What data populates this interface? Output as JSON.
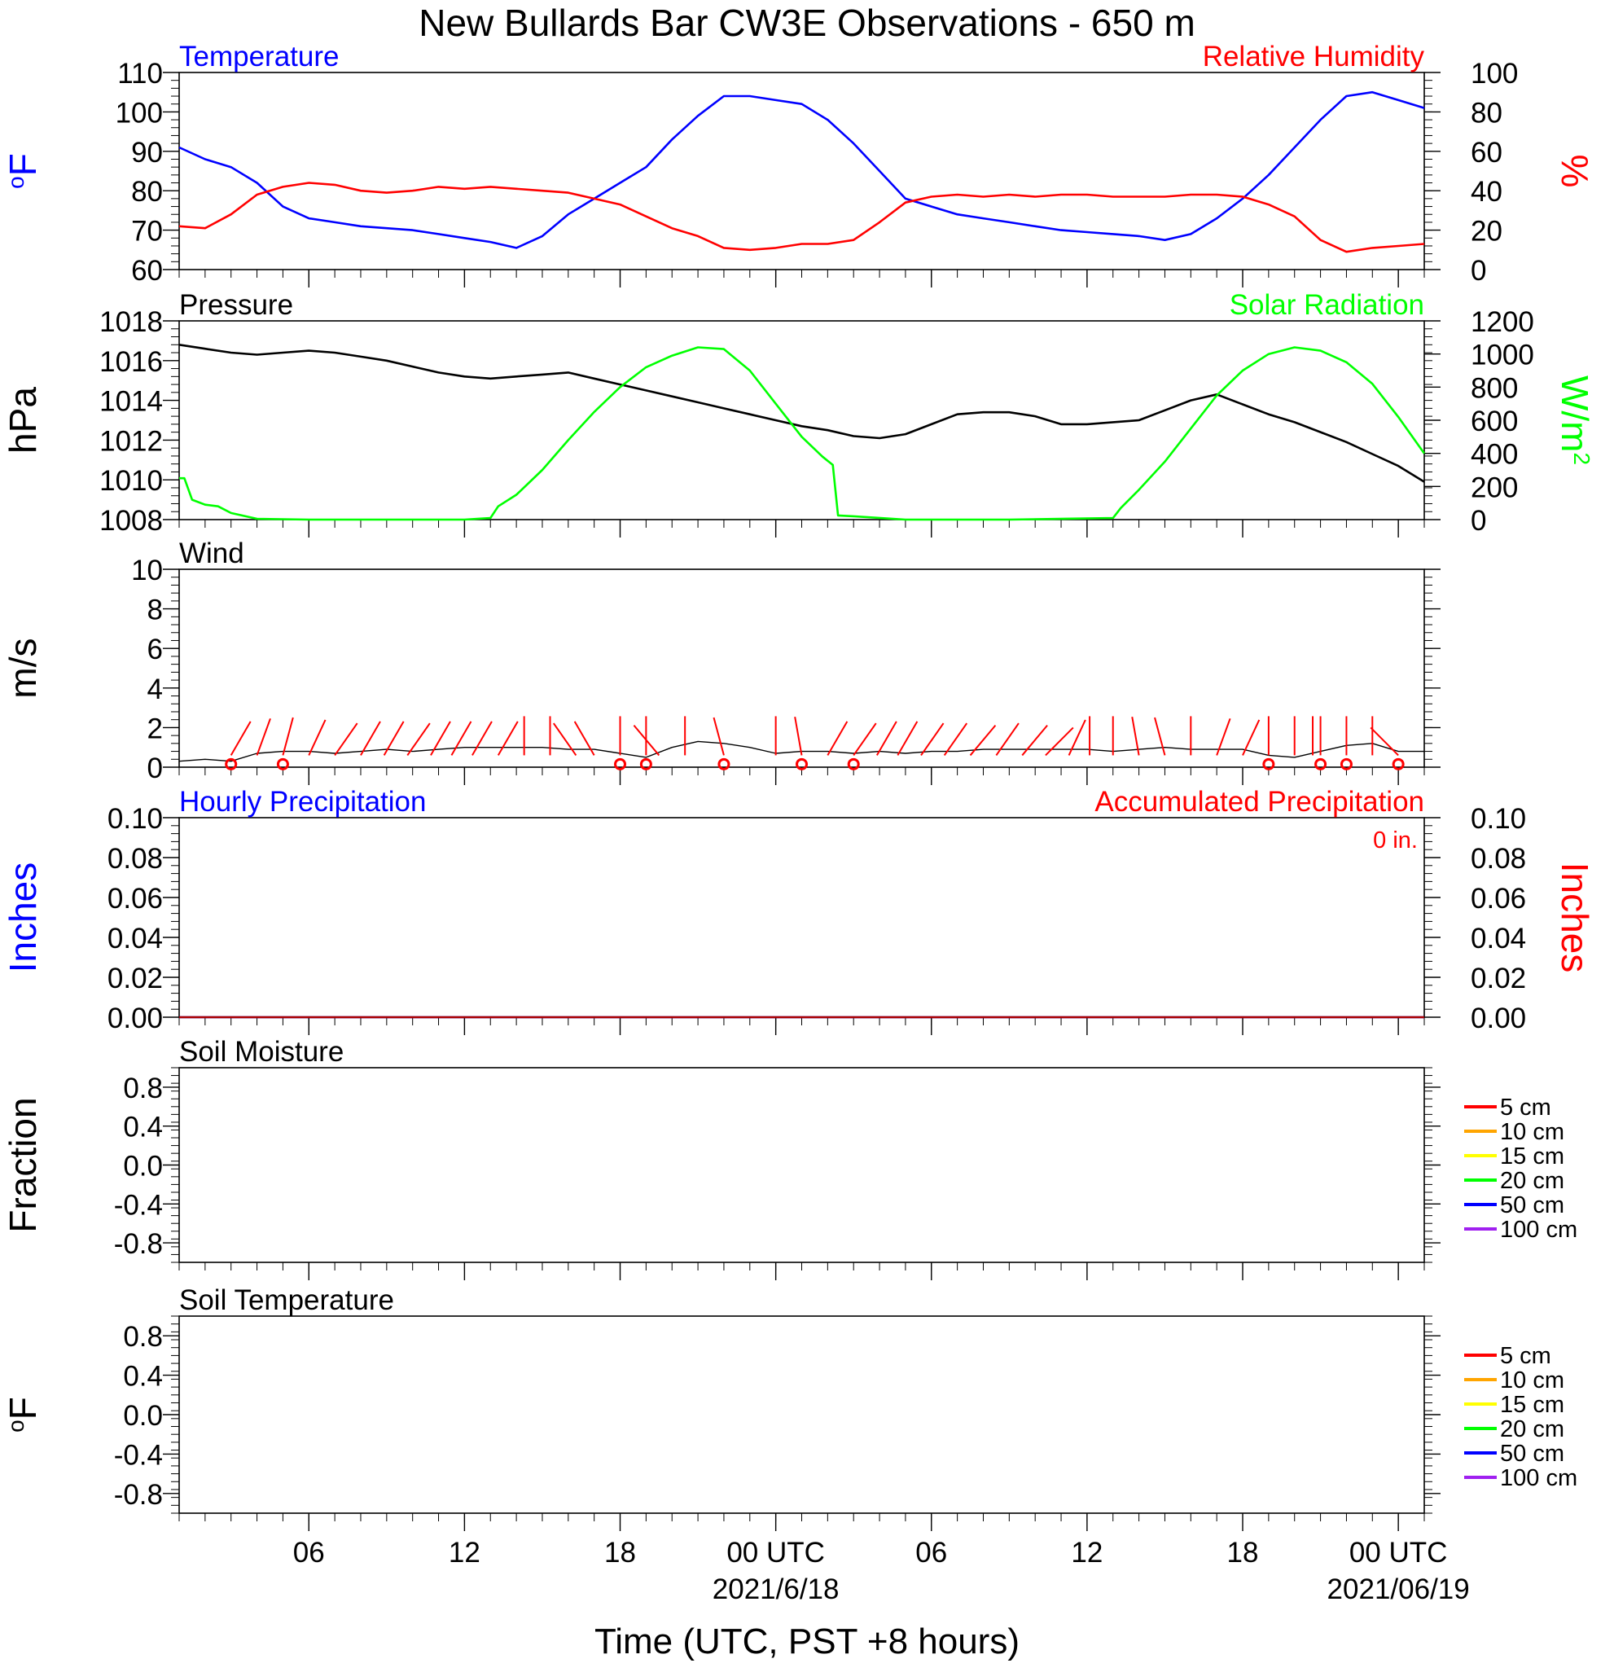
{
  "figure": {
    "title": "New Bullards Bar CW3E Observations - 650 m",
    "xlabel": "Time (UTC, PST +8 hours)"
  },
  "colors": {
    "frame": "#000000",
    "temperature": "#0000ff",
    "humidity": "#ff0000",
    "pressure": "#000000",
    "solar": "#00ff00",
    "wind_speed": "#000000",
    "wind_barb": "#ff0000",
    "hourly_precip": "#0000ff",
    "accum_precip": "#ff0000"
  },
  "chart_data": [
    {
      "id": "temp_rh",
      "type": "line",
      "left_label": "Temperature",
      "right_label": "Relative Humidity",
      "left_unit": "oF",
      "right_unit": "%",
      "x_range_hours": [
        0,
        48
      ],
      "y_left_range": [
        60,
        110
      ],
      "y_right_range": [
        0,
        100
      ],
      "y_left_ticks": [
        "60",
        "70",
        "80",
        "90",
        "100",
        "110"
      ],
      "y_right_ticks": [
        "0",
        "20",
        "40",
        "60",
        "80",
        "100"
      ],
      "series": [
        {
          "name": "Temperature",
          "axis": "left",
          "x": [
            0,
            1,
            2,
            3,
            4,
            5,
            6,
            7,
            8,
            9,
            10,
            11,
            12,
            13,
            14,
            15,
            16,
            17,
            18,
            19,
            20,
            21,
            22,
            23,
            24,
            25,
            26,
            27,
            28,
            29,
            30,
            31,
            32,
            33,
            34,
            35,
            36,
            37,
            38,
            39,
            40,
            41,
            42,
            43,
            44,
            45,
            46,
            47,
            48
          ],
          "y": [
            91,
            88,
            86,
            82,
            76,
            73,
            72,
            71,
            70.5,
            70,
            69,
            68,
            67,
            65.5,
            68.5,
            74,
            78,
            82,
            86,
            93,
            99,
            104,
            104,
            103,
            102,
            98,
            92,
            85,
            78,
            76,
            74,
            73,
            72,
            71,
            70,
            69.5,
            69,
            68.5,
            67.5,
            69,
            73,
            78,
            84,
            91,
            98,
            104,
            105,
            103,
            101
          ]
        },
        {
          "name": "Relative Humidity",
          "axis": "right",
          "x": [
            0,
            1,
            2,
            3,
            4,
            5,
            6,
            7,
            8,
            9,
            10,
            11,
            12,
            13,
            14,
            15,
            16,
            17,
            18,
            19,
            20,
            21,
            22,
            23,
            24,
            25,
            26,
            27,
            28,
            29,
            30,
            31,
            32,
            33,
            34,
            35,
            36,
            37,
            38,
            39,
            40,
            41,
            42,
            43,
            44,
            45,
            46,
            47,
            48
          ],
          "y": [
            22,
            21,
            28,
            38,
            42,
            44,
            43,
            40,
            39,
            40,
            42,
            41,
            42,
            41,
            40,
            39,
            36,
            33,
            27,
            21,
            17,
            11,
            10,
            11,
            13,
            13,
            15,
            24,
            34,
            37,
            38,
            37,
            38,
            37,
            38,
            38,
            37,
            37,
            37,
            38,
            38,
            37,
            33,
            27,
            15,
            9,
            11,
            12,
            13
          ]
        }
      ]
    },
    {
      "id": "pressure_solar",
      "type": "line",
      "left_label": "Pressure",
      "right_label": "Solar Radiation",
      "left_unit": "hPa",
      "right_unit": "W/m²",
      "x_range_hours": [
        0,
        48
      ],
      "y_left_range": [
        1008,
        1018
      ],
      "y_right_range": [
        0,
        1200
      ],
      "y_left_ticks": [
        "1008",
        "1010",
        "1012",
        "1014",
        "1016",
        "1018"
      ],
      "y_right_ticks": [
        "0",
        "200",
        "400",
        "600",
        "800",
        "1000",
        "1200"
      ],
      "series": [
        {
          "name": "Pressure",
          "axis": "left",
          "x": [
            0,
            1,
            2,
            3,
            4,
            5,
            6,
            7,
            8,
            9,
            10,
            11,
            12,
            13,
            14,
            15,
            16,
            17,
            18,
            19,
            20,
            21,
            22,
            23,
            24,
            25,
            26,
            27,
            28,
            29,
            30,
            31,
            32,
            33,
            34,
            35,
            36,
            37,
            38,
            39,
            40,
            41,
            42,
            43,
            44,
            45,
            46,
            47,
            48
          ],
          "y": [
            1016.8,
            1016.6,
            1016.4,
            1016.3,
            1016.4,
            1016.5,
            1016.4,
            1016.2,
            1016.0,
            1015.7,
            1015.4,
            1015.2,
            1015.1,
            1015.2,
            1015.3,
            1015.4,
            1015.1,
            1014.8,
            1014.5,
            1014.2,
            1013.9,
            1013.6,
            1013.3,
            1013.0,
            1012.7,
            1012.5,
            1012.2,
            1012.1,
            1012.3,
            1012.8,
            1013.3,
            1013.4,
            1013.4,
            1013.2,
            1012.8,
            1012.8,
            1012.9,
            1013.0,
            1013.5,
            1014.0,
            1014.3,
            1013.8,
            1013.3,
            1012.9,
            1012.4,
            1011.9,
            1011.3,
            1010.7,
            1009.9
          ]
        },
        {
          "name": "Solar Radiation",
          "axis": "right",
          "x": [
            0,
            0.2,
            0.5,
            1,
            1.5,
            2,
            3,
            5,
            8,
            11,
            12,
            12.3,
            13,
            14,
            15,
            16,
            17,
            18,
            19,
            20,
            21,
            22,
            23,
            24,
            24.8,
            25.2,
            25.4,
            26,
            28,
            32,
            36,
            36.3,
            37,
            38,
            39,
            40,
            41,
            42,
            43,
            44,
            45,
            46,
            47,
            48
          ],
          "y": [
            250,
            250,
            120,
            90,
            80,
            40,
            5,
            0,
            0,
            0,
            10,
            80,
            150,
            300,
            480,
            650,
            800,
            920,
            990,
            1040,
            1030,
            900,
            700,
            500,
            380,
            330,
            25,
            20,
            0,
            0,
            10,
            70,
            180,
            350,
            550,
            750,
            900,
            1000,
            1040,
            1020,
            950,
            820,
            620,
            400
          ]
        }
      ]
    },
    {
      "id": "wind",
      "type": "line",
      "left_label": "Wind",
      "left_unit": "m/s",
      "x_range_hours": [
        0,
        48
      ],
      "y_left_range": [
        0,
        10
      ],
      "y_left_ticks": [
        "0",
        "2",
        "4",
        "6",
        "8",
        "10"
      ],
      "series": [
        {
          "name": "Wind",
          "axis": "left",
          "x": [
            0,
            1,
            2,
            3,
            4,
            5,
            6,
            7,
            8,
            9,
            10,
            11,
            12,
            13,
            14,
            15,
            16,
            17,
            18,
            19,
            20,
            21,
            22,
            23,
            24,
            25,
            26,
            27,
            28,
            29,
            30,
            31,
            32,
            33,
            34,
            35,
            36,
            37,
            38,
            39,
            40,
            41,
            42,
            43,
            44,
            45,
            46,
            47,
            48
          ],
          "y": [
            0.3,
            0.4,
            0.3,
            0.7,
            0.8,
            0.8,
            0.7,
            0.8,
            0.9,
            0.8,
            0.9,
            1.0,
            1.0,
            1.0,
            1.0,
            0.9,
            0.9,
            0.7,
            0.5,
            1.0,
            1.3,
            1.2,
            1.0,
            0.7,
            0.8,
            0.8,
            0.7,
            0.8,
            0.7,
            0.8,
            0.8,
            0.9,
            0.9,
            0.9,
            0.9,
            0.9,
            0.8,
            0.9,
            1.0,
            0.9,
            0.9,
            0.9,
            0.6,
            0.5,
            0.8,
            1.1,
            1.2,
            0.8,
            0.8
          ]
        }
      ],
      "barbs": {
        "hours": [
          2,
          3,
          4,
          5,
          6,
          7,
          7.9,
          8.8,
          9.7,
          10.5,
          11.3,
          12.3,
          13.3,
          14.3,
          15.3,
          16,
          17,
          18,
          18.5,
          19.5,
          21,
          23,
          24,
          25,
          26,
          26.9,
          27.7,
          28.6,
          29.5,
          30.5,
          31.5,
          32.5,
          33.4,
          34.3,
          35.1,
          36,
          37,
          38,
          39,
          40,
          41,
          42,
          43,
          43.7,
          44,
          45,
          46,
          47
        ],
        "headings_deg": [
          -30,
          -20,
          -15,
          -25,
          -35,
          -30,
          -30,
          -35,
          -30,
          -30,
          -30,
          -30,
          0,
          0,
          35,
          30,
          0,
          0,
          40,
          0,
          15,
          0,
          10,
          -30,
          -35,
          -30,
          -30,
          -35,
          -35,
          -40,
          -35,
          -40,
          -45,
          -25,
          0,
          0,
          10,
          15,
          0,
          -20,
          -25,
          0,
          0,
          0,
          0,
          0,
          0,
          45
        ],
        "circle_hours": [
          2,
          4,
          17,
          18,
          21,
          24,
          26,
          42,
          44,
          45,
          47
        ]
      }
    },
    {
      "id": "precip",
      "type": "line",
      "left_label": "Hourly Precipitation",
      "right_label": "Accumulated Precipitation",
      "accum_text": "0 in.",
      "left_unit": "Inches",
      "right_unit": "Inches",
      "x_range_hours": [
        0,
        48
      ],
      "y_left_range": [
        0,
        0.1
      ],
      "y_right_range": [
        0,
        0.1
      ],
      "y_left_ticks": [
        "0.00",
        "0.02",
        "0.04",
        "0.06",
        "0.08",
        "0.10"
      ],
      "y_right_ticks": [
        "0.00",
        "0.02",
        "0.04",
        "0.06",
        "0.08",
        "0.10"
      ],
      "series": [
        {
          "name": "Hourly Precipitation",
          "axis": "left",
          "x": [
            0,
            48
          ],
          "y": [
            0,
            0
          ]
        },
        {
          "name": "Accumulated Precipitation",
          "axis": "right",
          "x": [
            0,
            48
          ],
          "y": [
            0,
            0
          ]
        }
      ]
    },
    {
      "id": "soil_moisture",
      "type": "line",
      "left_label": "Soil Moisture",
      "left_unit": "Fraction",
      "x_range_hours": [
        0,
        48
      ],
      "y_left_range": [
        -1,
        1
      ],
      "y_left_ticks": [
        "-0.8",
        "-0.4",
        "0.0",
        "0.4",
        "0.8"
      ],
      "legend": [
        {
          "label": "5 cm",
          "color": "#ff0000"
        },
        {
          "label": "10 cm",
          "color": "#ffa500"
        },
        {
          "label": "15 cm",
          "color": "#ffff00"
        },
        {
          "label": "20 cm",
          "color": "#00ff00"
        },
        {
          "label": "50 cm",
          "color": "#0000ff"
        },
        {
          "label": "100 cm",
          "color": "#a020f0"
        }
      ],
      "series": []
    },
    {
      "id": "soil_temperature",
      "type": "line",
      "left_label": "Soil Temperature",
      "left_unit": "oF",
      "x_range_hours": [
        0,
        48
      ],
      "y_left_range": [
        -1,
        1
      ],
      "y_left_ticks": [
        "-0.8",
        "-0.4",
        "0.0",
        "0.4",
        "0.8"
      ],
      "legend": [
        {
          "label": "5 cm",
          "color": "#ff0000"
        },
        {
          "label": "10 cm",
          "color": "#ffa500"
        },
        {
          "label": "15 cm",
          "color": "#ffff00"
        },
        {
          "label": "20 cm",
          "color": "#00ff00"
        },
        {
          "label": "50 cm",
          "color": "#0000ff"
        },
        {
          "label": "100 cm",
          "color": "#a020f0"
        }
      ],
      "series": []
    }
  ],
  "x_axis": {
    "ticks": [
      {
        "hour": 5,
        "label": "06",
        "date": ""
      },
      {
        "hour": 11,
        "label": "12",
        "date": ""
      },
      {
        "hour": 17,
        "label": "18",
        "date": ""
      },
      {
        "hour": 23,
        "label": "00 UTC",
        "date": "2021/6/18"
      },
      {
        "hour": 29,
        "label": "06",
        "date": ""
      },
      {
        "hour": 35,
        "label": "12",
        "date": ""
      },
      {
        "hour": 41,
        "label": "18",
        "date": ""
      },
      {
        "hour": 47,
        "label": "00 UTC",
        "date": "2021/06/19"
      }
    ]
  }
}
